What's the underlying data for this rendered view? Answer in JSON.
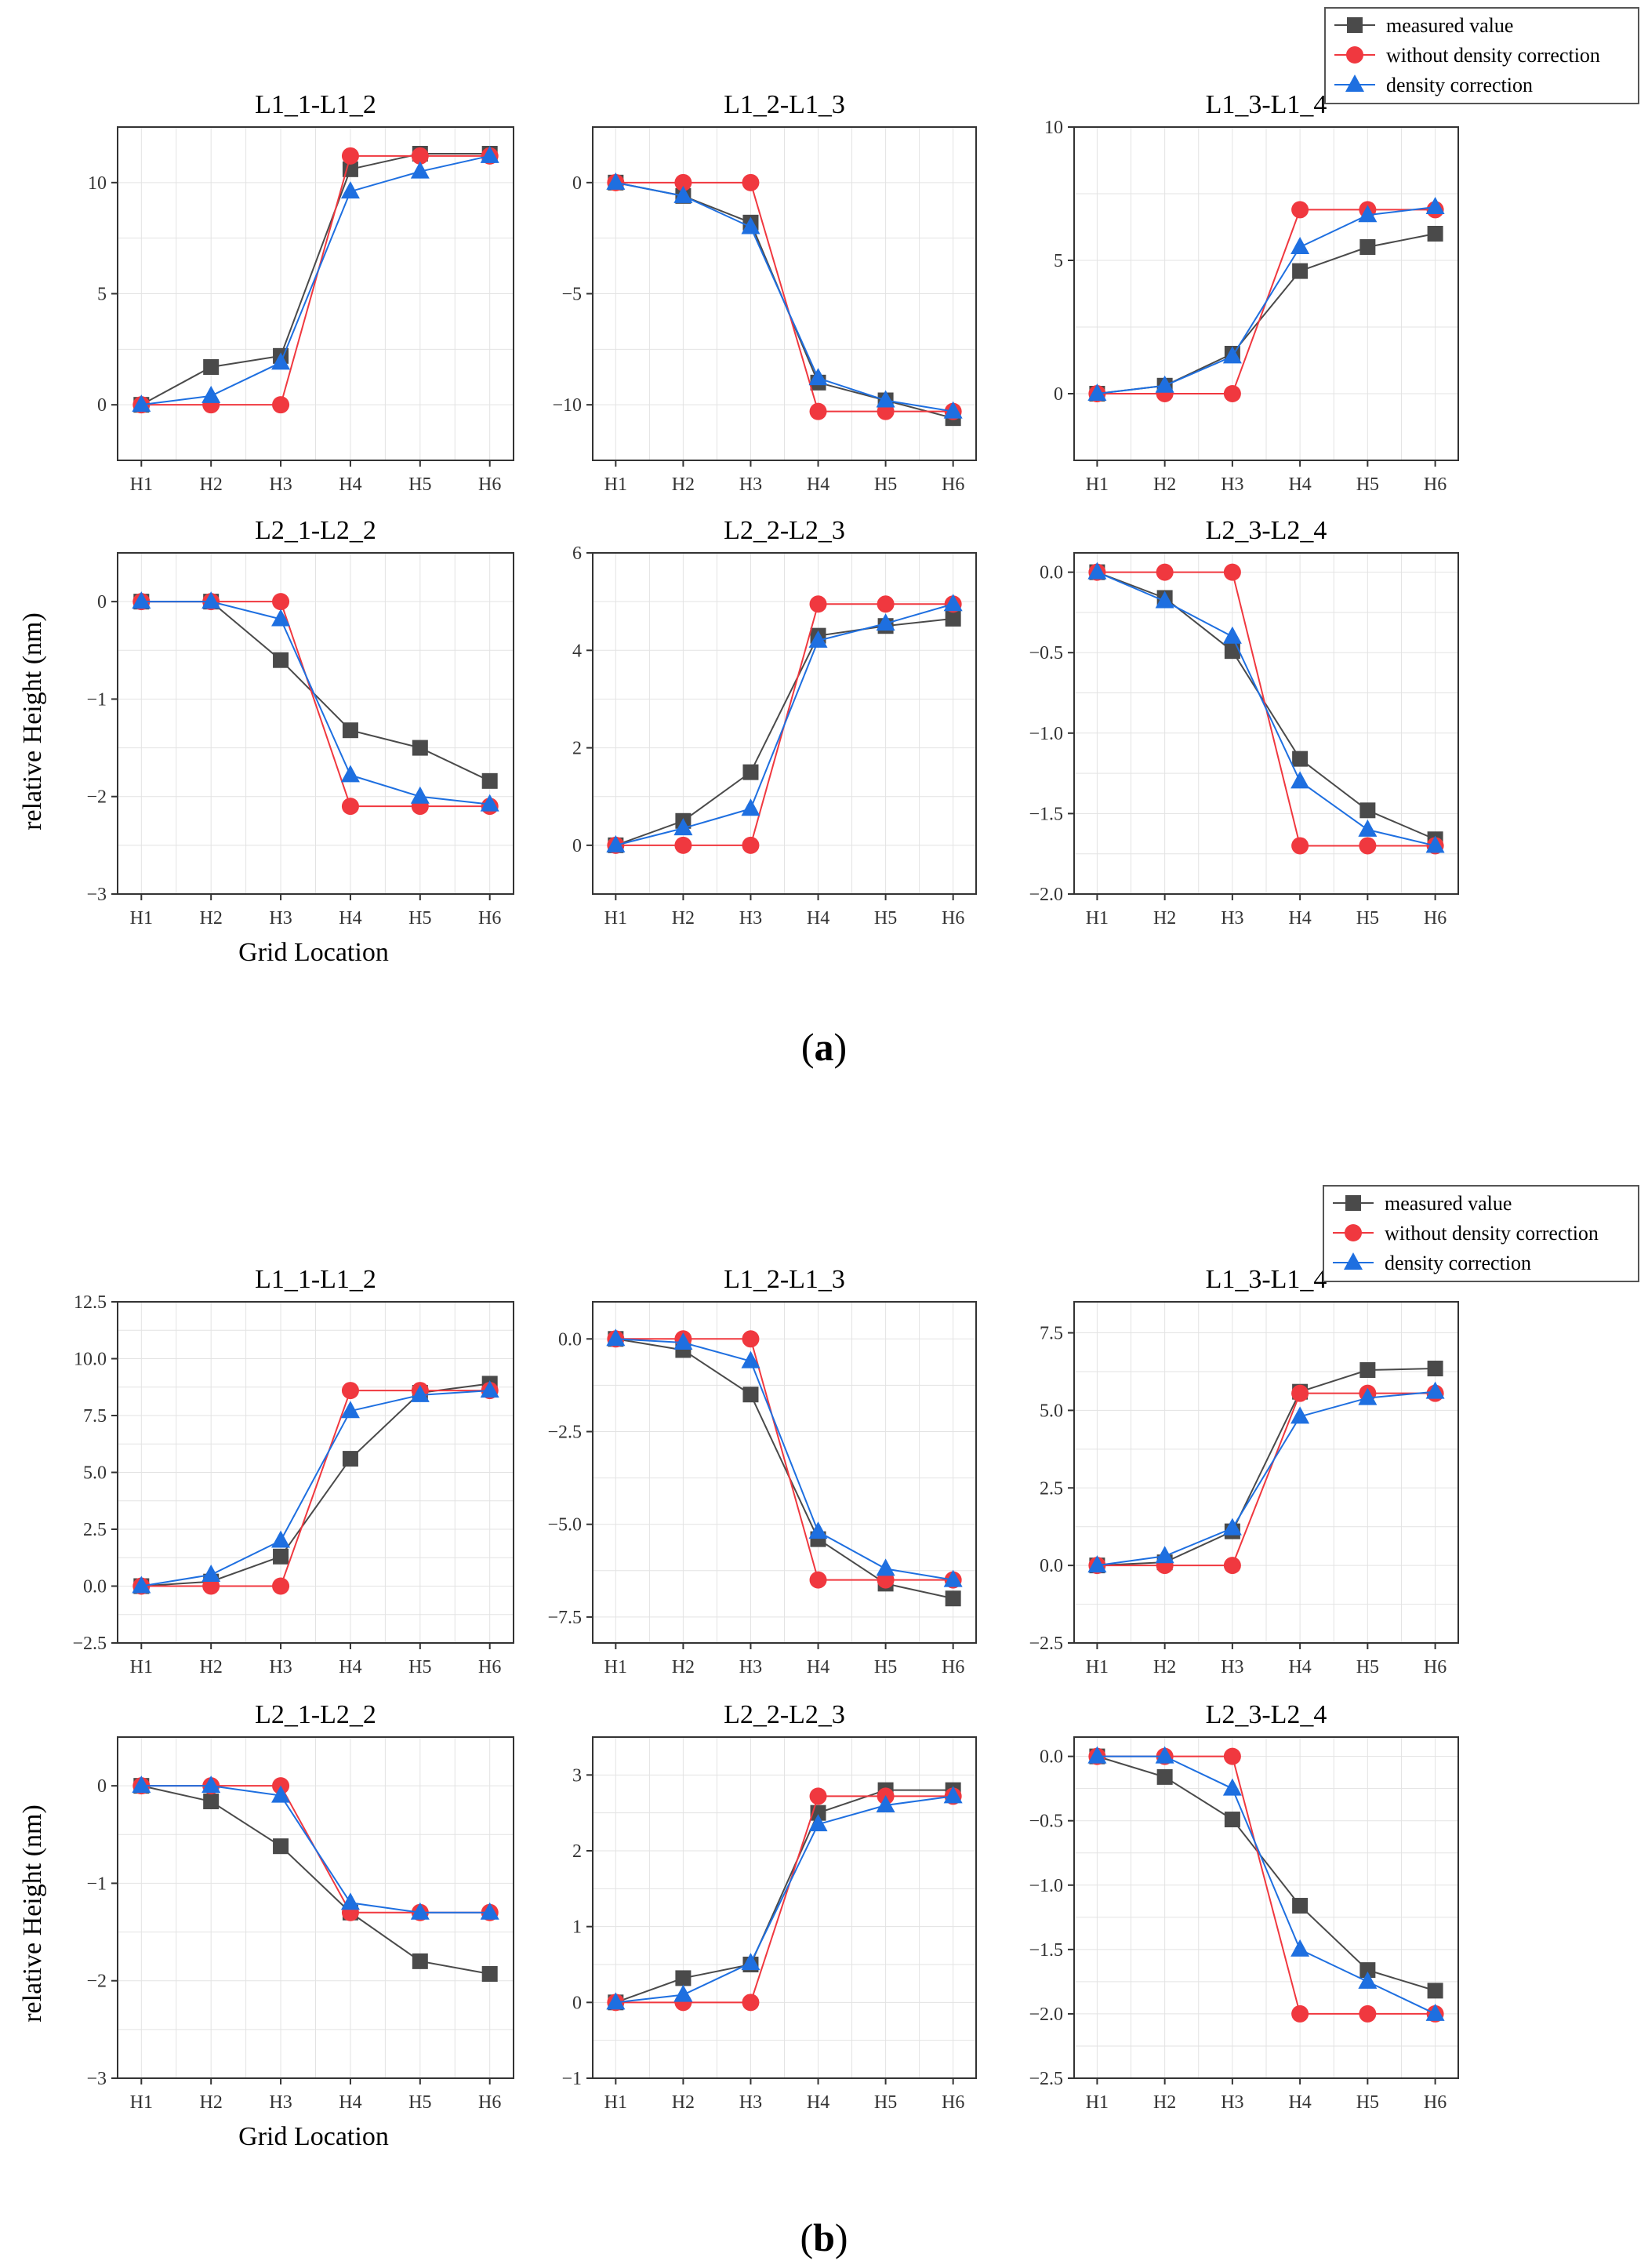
{
  "colors": {
    "measured": "#4a4a4a",
    "without": "#f0383f",
    "density": "#1e6fe0"
  },
  "x_categories": [
    "H1",
    "H2",
    "H3",
    "H4",
    "H5",
    "H6"
  ],
  "legend": {
    "measured": "measured value",
    "without": "without density correction",
    "density": "density correction"
  },
  "axis_titles": {
    "ylabel": "relative Height (nm)",
    "xlabel": "Grid Location"
  },
  "figures": [
    {
      "caption_letter": "a"
    },
    {
      "caption_letter": "b"
    }
  ],
  "chart_data": [
    {
      "type": "line",
      "figure": "a",
      "title": "L1_1-L1_2",
      "categories": [
        "H1",
        "H2",
        "H3",
        "H4",
        "H5",
        "H6"
      ],
      "ylim": [
        -2.5,
        12.5
      ],
      "yticks": [
        0,
        5,
        10
      ],
      "series": [
        {
          "name": "measured value",
          "values": [
            0,
            1.7,
            2.2,
            10.6,
            11.3,
            11.3
          ]
        },
        {
          "name": "without density correction",
          "values": [
            0,
            0,
            0,
            11.2,
            11.2,
            11.2
          ]
        },
        {
          "name": "density correction",
          "values": [
            0,
            0.4,
            1.9,
            9.6,
            10.5,
            11.2
          ]
        }
      ]
    },
    {
      "type": "line",
      "figure": "a",
      "title": "L1_2-L1_3",
      "categories": [
        "H1",
        "H2",
        "H3",
        "H4",
        "H5",
        "H6"
      ],
      "ylim": [
        -12.5,
        2.5
      ],
      "yticks": [
        -10,
        -5,
        0
      ],
      "series": [
        {
          "name": "measured value",
          "values": [
            0,
            -0.6,
            -1.8,
            -9.0,
            -9.8,
            -10.6
          ]
        },
        {
          "name": "without density correction",
          "values": [
            0,
            0,
            0,
            -10.3,
            -10.3,
            -10.3
          ]
        },
        {
          "name": "density correction",
          "values": [
            0,
            -0.6,
            -2.0,
            -8.8,
            -9.8,
            -10.3
          ]
        }
      ]
    },
    {
      "type": "line",
      "figure": "a",
      "title": "L1_3-L1_4",
      "categories": [
        "H1",
        "H2",
        "H3",
        "H4",
        "H5",
        "H6"
      ],
      "ylim": [
        -2.5,
        10
      ],
      "yticks": [
        0,
        5,
        10
      ],
      "series": [
        {
          "name": "measured value",
          "values": [
            0,
            0.3,
            1.5,
            4.6,
            5.5,
            6.0
          ]
        },
        {
          "name": "without density correction",
          "values": [
            0,
            0,
            0,
            6.9,
            6.9,
            6.9
          ]
        },
        {
          "name": "density correction",
          "values": [
            0,
            0.3,
            1.4,
            5.5,
            6.7,
            7.0
          ]
        }
      ]
    },
    {
      "type": "line",
      "figure": "a",
      "title": "L2_1-L2_2",
      "categories": [
        "H1",
        "H2",
        "H3",
        "H4",
        "H5",
        "H6"
      ],
      "ylim": [
        -3,
        0.5
      ],
      "yticks": [
        -3,
        -2,
        -1,
        0
      ],
      "series": [
        {
          "name": "measured value",
          "values": [
            0,
            0,
            -0.6,
            -1.32,
            -1.5,
            -1.84
          ]
        },
        {
          "name": "without density correction",
          "values": [
            0,
            0,
            0,
            -2.1,
            -2.1,
            -2.1
          ]
        },
        {
          "name": "density correction",
          "values": [
            0,
            0,
            -0.18,
            -1.78,
            -2.0,
            -2.08
          ]
        }
      ]
    },
    {
      "type": "line",
      "figure": "a",
      "title": "L2_2-L2_3",
      "categories": [
        "H1",
        "H2",
        "H3",
        "H4",
        "H5",
        "H6"
      ],
      "ylim": [
        -1,
        6
      ],
      "yticks": [
        0,
        2,
        4,
        6
      ],
      "series": [
        {
          "name": "measured value",
          "values": [
            0,
            0.5,
            1.5,
            4.3,
            4.5,
            4.65
          ]
        },
        {
          "name": "without density correction",
          "values": [
            0,
            0,
            0,
            4.95,
            4.95,
            4.95
          ]
        },
        {
          "name": "density correction",
          "values": [
            0,
            0.35,
            0.75,
            4.2,
            4.55,
            4.95
          ]
        }
      ]
    },
    {
      "type": "line",
      "figure": "a",
      "title": "L2_3-L2_4",
      "categories": [
        "H1",
        "H2",
        "H3",
        "H4",
        "H5",
        "H6"
      ],
      "ylim": [
        -2.0,
        0.12
      ],
      "yticks": [
        -2.0,
        -1.5,
        -1.0,
        -0.5,
        0.0
      ],
      "series": [
        {
          "name": "measured value",
          "values": [
            0,
            -0.16,
            -0.49,
            -1.16,
            -1.48,
            -1.66
          ]
        },
        {
          "name": "without density correction",
          "values": [
            0,
            0,
            0,
            -1.7,
            -1.7,
            -1.7
          ]
        },
        {
          "name": "density correction",
          "values": [
            0,
            -0.18,
            -0.4,
            -1.3,
            -1.6,
            -1.7
          ]
        }
      ]
    },
    {
      "type": "line",
      "figure": "b",
      "title": "L1_1-L1_2",
      "categories": [
        "H1",
        "H2",
        "H3",
        "H4",
        "H5",
        "H6"
      ],
      "ylim": [
        -2.5,
        12.5
      ],
      "yticks": [
        -2.5,
        0.0,
        2.5,
        5.0,
        7.5,
        10.0,
        12.5
      ],
      "series": [
        {
          "name": "measured value",
          "values": [
            0,
            0.2,
            1.3,
            5.6,
            8.5,
            8.9
          ]
        },
        {
          "name": "without density correction",
          "values": [
            0,
            0,
            0,
            8.6,
            8.6,
            8.6
          ]
        },
        {
          "name": "density correction",
          "values": [
            0,
            0.5,
            2.0,
            7.7,
            8.4,
            8.6
          ]
        }
      ]
    },
    {
      "type": "line",
      "figure": "b",
      "title": "L1_2-L1_3",
      "categories": [
        "H1",
        "H2",
        "H3",
        "H4",
        "H5",
        "H6"
      ],
      "ylim": [
        -8.2,
        1.0
      ],
      "yticks": [
        -7.5,
        -5.0,
        -2.5,
        0.0
      ],
      "series": [
        {
          "name": "measured value",
          "values": [
            0,
            -0.3,
            -1.5,
            -5.4,
            -6.6,
            -7.0
          ]
        },
        {
          "name": "without density correction",
          "values": [
            0,
            0,
            0,
            -6.5,
            -6.5,
            -6.5
          ]
        },
        {
          "name": "density correction",
          "values": [
            0,
            -0.1,
            -0.6,
            -5.2,
            -6.2,
            -6.5
          ]
        }
      ]
    },
    {
      "type": "line",
      "figure": "b",
      "title": "L1_3-L1_4",
      "categories": [
        "H1",
        "H2",
        "H3",
        "H4",
        "H5",
        "H6"
      ],
      "ylim": [
        -2.5,
        8.5
      ],
      "yticks": [
        -2.5,
        0.0,
        2.5,
        5.0,
        7.5
      ],
      "series": [
        {
          "name": "measured value",
          "values": [
            0,
            0.1,
            1.1,
            5.6,
            6.3,
            6.35
          ]
        },
        {
          "name": "without density correction",
          "values": [
            0,
            0,
            0,
            5.55,
            5.55,
            5.55
          ]
        },
        {
          "name": "density correction",
          "values": [
            0,
            0.3,
            1.2,
            4.8,
            5.4,
            5.6
          ]
        }
      ]
    },
    {
      "type": "line",
      "figure": "b",
      "title": "L2_1-L2_2",
      "categories": [
        "H1",
        "H2",
        "H3",
        "H4",
        "H5",
        "H6"
      ],
      "ylim": [
        -3,
        0.5
      ],
      "yticks": [
        -3,
        -2,
        -1,
        0
      ],
      "series": [
        {
          "name": "measured value",
          "values": [
            0,
            -0.16,
            -0.62,
            -1.3,
            -1.8,
            -1.93
          ]
        },
        {
          "name": "without density correction",
          "values": [
            0,
            0,
            0,
            -1.3,
            -1.3,
            -1.3
          ]
        },
        {
          "name": "density correction",
          "values": [
            0,
            0,
            -0.1,
            -1.2,
            -1.3,
            -1.3
          ]
        }
      ]
    },
    {
      "type": "line",
      "figure": "b",
      "title": "L2_2-L2_3",
      "categories": [
        "H1",
        "H2",
        "H3",
        "H4",
        "H5",
        "H6"
      ],
      "ylim": [
        -1,
        3.5
      ],
      "yticks": [
        -1,
        0,
        1,
        2,
        3
      ],
      "series": [
        {
          "name": "measured value",
          "values": [
            0,
            0.32,
            0.5,
            2.5,
            2.8,
            2.8
          ]
        },
        {
          "name": "without density correction",
          "values": [
            0,
            0,
            0,
            2.72,
            2.72,
            2.72
          ]
        },
        {
          "name": "density correction",
          "values": [
            0,
            0.1,
            0.52,
            2.35,
            2.6,
            2.72
          ]
        }
      ]
    },
    {
      "type": "line",
      "figure": "b",
      "title": "L2_3-L2_4",
      "categories": [
        "H1",
        "H2",
        "H3",
        "H4",
        "H5",
        "H6"
      ],
      "ylim": [
        -2.5,
        0.15
      ],
      "yticks": [
        -2.5,
        -2.0,
        -1.5,
        -1.0,
        -0.5,
        0.0
      ],
      "series": [
        {
          "name": "measured value",
          "values": [
            0,
            -0.16,
            -0.49,
            -1.16,
            -1.66,
            -1.82
          ]
        },
        {
          "name": "without density correction",
          "values": [
            0,
            0,
            0,
            -2.0,
            -2.0,
            -2.0
          ]
        },
        {
          "name": "density correction",
          "values": [
            0,
            0,
            -0.25,
            -1.5,
            -1.75,
            -2.0
          ]
        }
      ]
    }
  ]
}
